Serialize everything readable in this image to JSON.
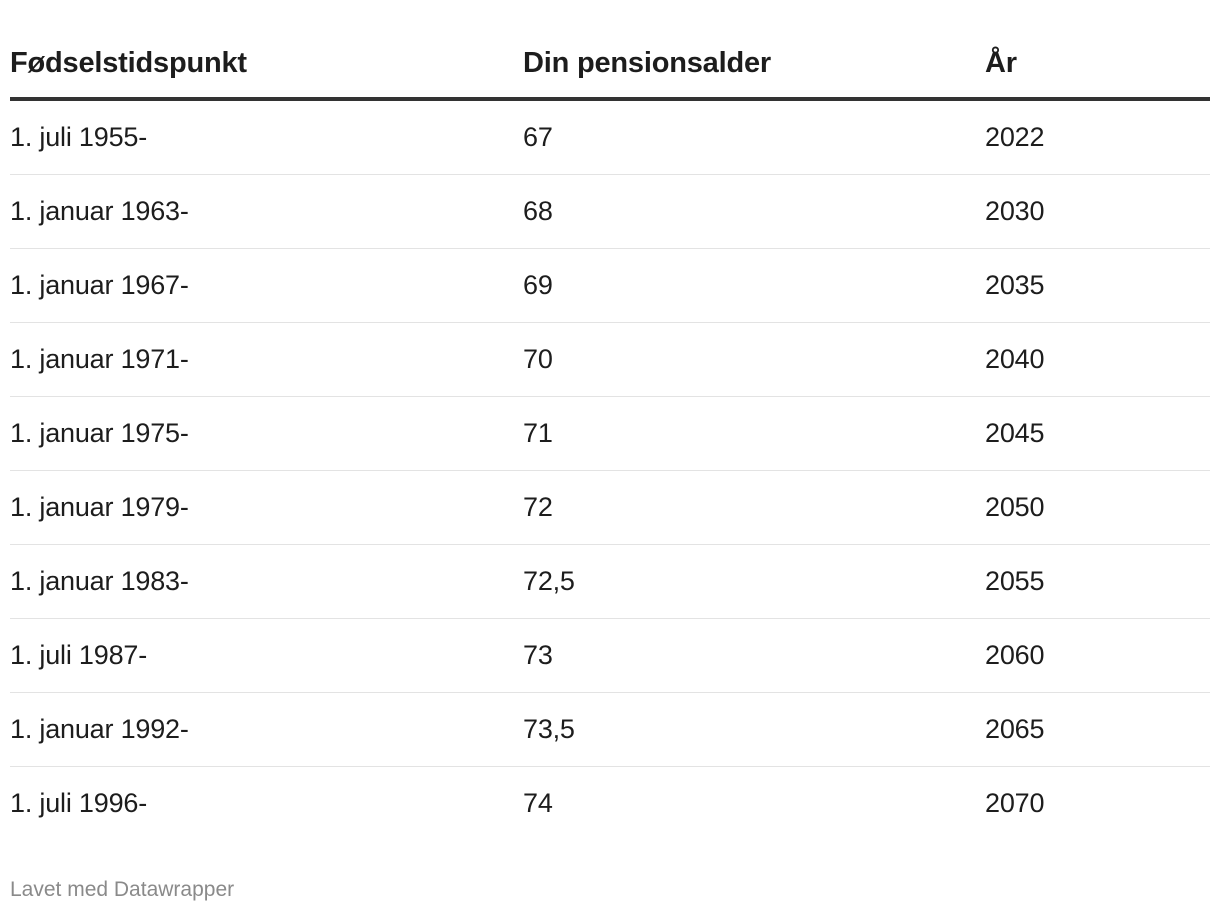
{
  "chart_data": {
    "type": "table",
    "columns": [
      "Fødselstidspunkt",
      "Din pensionsalder",
      "År"
    ],
    "rows": [
      [
        "1. juli 1955-",
        "67",
        "2022"
      ],
      [
        "1. januar 1963-",
        "68",
        "2030"
      ],
      [
        "1. januar 1967-",
        "69",
        "2035"
      ],
      [
        "1. januar 1971-",
        "70",
        "2040"
      ],
      [
        "1. januar 1975-",
        "71",
        "2045"
      ],
      [
        "1. januar 1979-",
        "72",
        "2050"
      ],
      [
        "1. januar 1983-",
        "72,5",
        "2055"
      ],
      [
        "1. juli 1987-",
        "73",
        "2060"
      ],
      [
        "1. januar 1992-",
        "73,5",
        "2065"
      ],
      [
        "1. juli 1996-",
        "74",
        "2070"
      ]
    ]
  },
  "footer": {
    "credit": "Lavet med Datawrapper"
  },
  "colors": {
    "text": "#1d1d1d",
    "header_rule": "#333333",
    "row_rule": "#e3e3e3",
    "footer_text": "#8a8a8a"
  }
}
